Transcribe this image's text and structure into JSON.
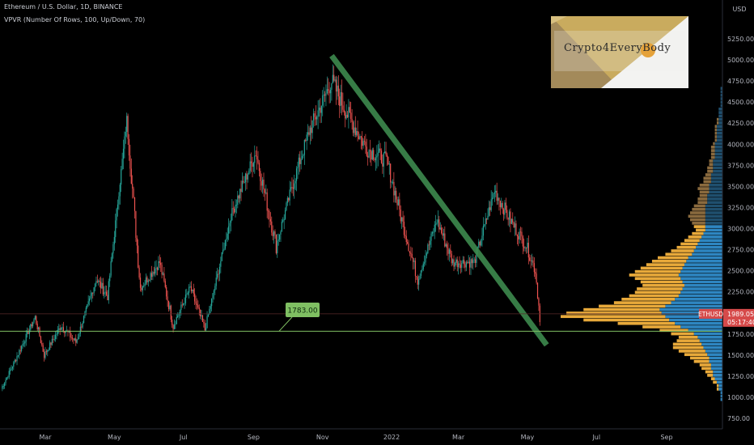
{
  "header": {
    "symbol_line": "Ethereum / U.S. Dollar, 1D, BINANCE",
    "indicator_line": "VPVR (Number Of Rows, 100, Up/Down, 70)"
  },
  "logo": {
    "text": "Crypto4EveryBody"
  },
  "colors": {
    "background": "#000000",
    "candle_up": "#26a69a",
    "candle_down": "#ef5350",
    "vp_up": "#2e86c1",
    "vp_down": "#e8a93a",
    "vp_up_dim": "#1f4f6e",
    "vp_down_dim": "#8a6a3e",
    "support_line": "#7fbf62",
    "trendline": "#3e8a4e",
    "price_tag": "#d64a4a"
  },
  "chart_data": {
    "type": "candlestick",
    "x_tick_labels": [
      "Mar",
      "May",
      "Jul",
      "Sep",
      "Nov",
      "2022",
      "Mar",
      "May",
      "Jul",
      "Sep"
    ],
    "y_axis": {
      "unit_label": "USD",
      "ticks": [
        "5250.00",
        "5000.00",
        "4750.00",
        "4500.00",
        "4250.00",
        "4000.00",
        "3750.00",
        "3500.00",
        "3250.00",
        "3000.00",
        "2750.00",
        "2500.00",
        "2250.00",
        "2000.00",
        "1750.00",
        "1500.00",
        "1250.00",
        "1000.00",
        "750.00"
      ],
      "range": [
        650,
        5300
      ]
    },
    "price_path": [
      {
        "date": "2021-01-21",
        "price": 1100
      },
      {
        "date": "2021-02-01",
        "price": 1400
      },
      {
        "date": "2021-02-20",
        "price": 1950
      },
      {
        "date": "2021-02-28",
        "price": 1500
      },
      {
        "date": "2021-03-15",
        "price": 1850
      },
      {
        "date": "2021-03-28",
        "price": 1650
      },
      {
        "date": "2021-04-15",
        "price": 2400
      },
      {
        "date": "2021-04-25",
        "price": 2200
      },
      {
        "date": "2021-05-12",
        "price": 4300
      },
      {
        "date": "2021-05-24",
        "price": 2300
      },
      {
        "date": "2021-06-10",
        "price": 2600
      },
      {
        "date": "2021-06-22",
        "price": 1850
      },
      {
        "date": "2021-07-07",
        "price": 2300
      },
      {
        "date": "2021-07-20",
        "price": 1800
      },
      {
        "date": "2021-08-13",
        "price": 3200
      },
      {
        "date": "2021-09-03",
        "price": 3900
      },
      {
        "date": "2021-09-21",
        "price": 2800
      },
      {
        "date": "2021-10-05",
        "price": 3500
      },
      {
        "date": "2021-10-20",
        "price": 4150
      },
      {
        "date": "2021-11-09",
        "price": 4750
      },
      {
        "date": "2021-11-25",
        "price": 4300
      },
      {
        "date": "2021-12-10",
        "price": 3950
      },
      {
        "date": "2021-12-28",
        "price": 3800
      },
      {
        "date": "2022-01-10",
        "price": 3100
      },
      {
        "date": "2022-01-24",
        "price": 2400
      },
      {
        "date": "2022-02-10",
        "price": 3100
      },
      {
        "date": "2022-02-24",
        "price": 2600
      },
      {
        "date": "2022-03-15",
        "price": 2600
      },
      {
        "date": "2022-04-02",
        "price": 3450
      },
      {
        "date": "2022-04-18",
        "price": 3050
      },
      {
        "date": "2022-04-30",
        "price": 2800
      },
      {
        "date": "2022-05-08",
        "price": 2500
      },
      {
        "date": "2022-05-12",
        "price": 1950
      }
    ],
    "support_level": {
      "label": "1783.00",
      "value": 1783
    },
    "trendline": {
      "start": {
        "date": "2021-11-09",
        "price": 5050
      },
      "end": {
        "date": "2022-05-18",
        "price": 1620
      }
    },
    "current_price": {
      "symbol": "ETHUSD",
      "price": "1989.05",
      "countdown": "05:17:40"
    },
    "volume_profile": {
      "levels_from": 850,
      "level_step": 41,
      "up": [
        0,
        0,
        0,
        1,
        1,
        1,
        2,
        2,
        3,
        4,
        5,
        5,
        6,
        6,
        7,
        7,
        8,
        9,
        10,
        11,
        12,
        13,
        15,
        18,
        22,
        25,
        28,
        30,
        32,
        33,
        30,
        27,
        25,
        23,
        22,
        21,
        20,
        21,
        22,
        23,
        22,
        21,
        20,
        19,
        18,
        16,
        15,
        14,
        13,
        12,
        11,
        10,
        9,
        9,
        9,
        9,
        9,
        9,
        9,
        9,
        8,
        8,
        8,
        7,
        7,
        7,
        6,
        6,
        6,
        5,
        5,
        5,
        5,
        4,
        4,
        4,
        4,
        4,
        3,
        3,
        3,
        3,
        3,
        2,
        2,
        2,
        2,
        2,
        1,
        1,
        1,
        1,
        1,
        1,
        0,
        0,
        0,
        0,
        0,
        0
      ],
      "down": [
        0,
        0,
        0,
        0,
        0,
        0,
        1,
        1,
        2,
        2,
        3,
        4,
        5,
        6,
        8,
        10,
        12,
        14,
        16,
        15,
        12,
        10,
        12,
        15,
        20,
        30,
        45,
        55,
        50,
        40,
        35,
        30,
        28,
        26,
        24,
        24,
        22,
        22,
        24,
        26,
        24,
        22,
        20,
        18,
        16,
        14,
        12,
        10,
        9,
        8,
        7,
        6,
        5,
        6,
        7,
        8,
        9,
        8,
        7,
        6,
        5,
        5,
        4,
        5,
        6,
        5,
        4,
        4,
        3,
        3,
        3,
        2,
        2,
        2,
        2,
        2,
        2,
        1,
        1,
        1,
        1,
        1,
        1,
        1,
        1,
        0,
        0,
        0,
        0,
        0,
        0,
        0,
        0,
        0,
        0,
        0,
        0,
        0,
        0,
        0
      ]
    }
  }
}
